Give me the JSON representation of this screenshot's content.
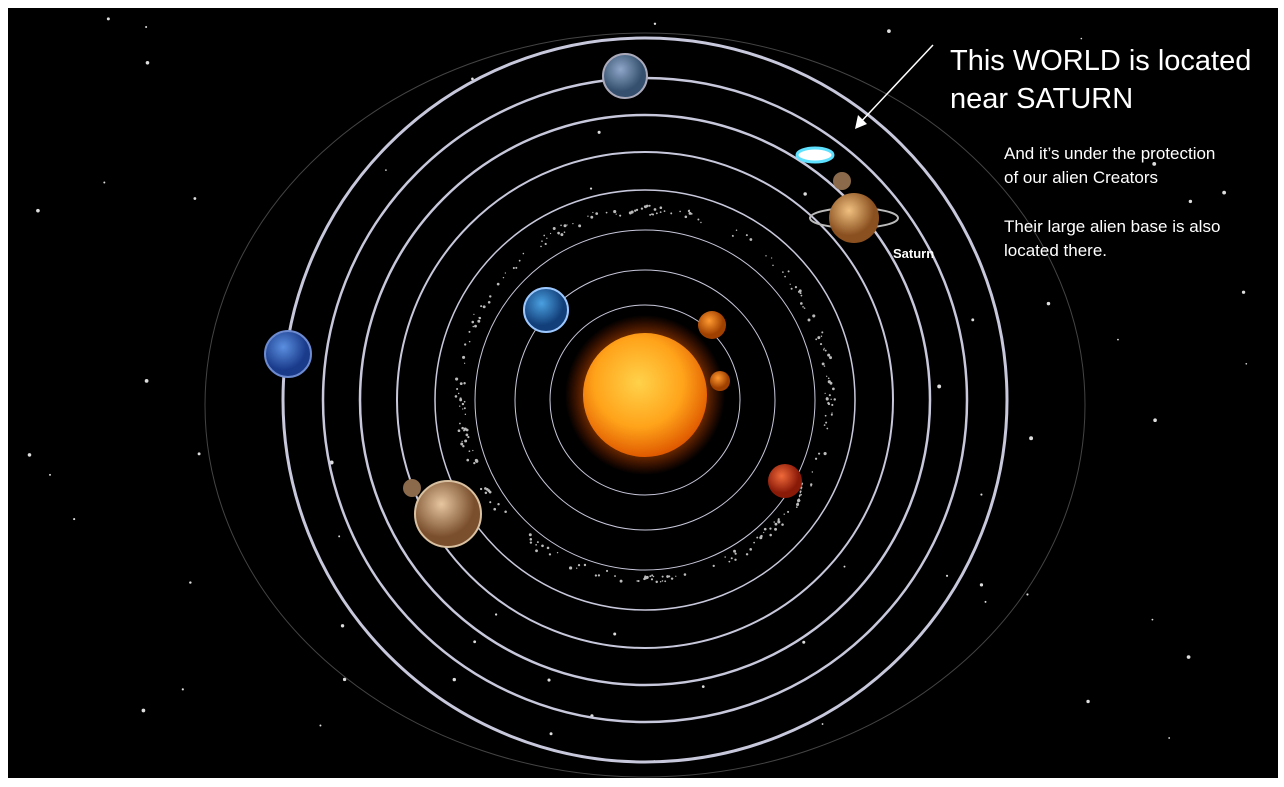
{
  "heading": {
    "lines": [
      "This WORLD is located",
      "near SATURN"
    ]
  },
  "notes": [
    {
      "lines": [
        "And it’s under the protection",
        "of our alien Creators"
      ]
    },
    {
      "lines": [
        "Their large alien base is also",
        "located there."
      ]
    }
  ],
  "planet_label": "Saturn"
}
